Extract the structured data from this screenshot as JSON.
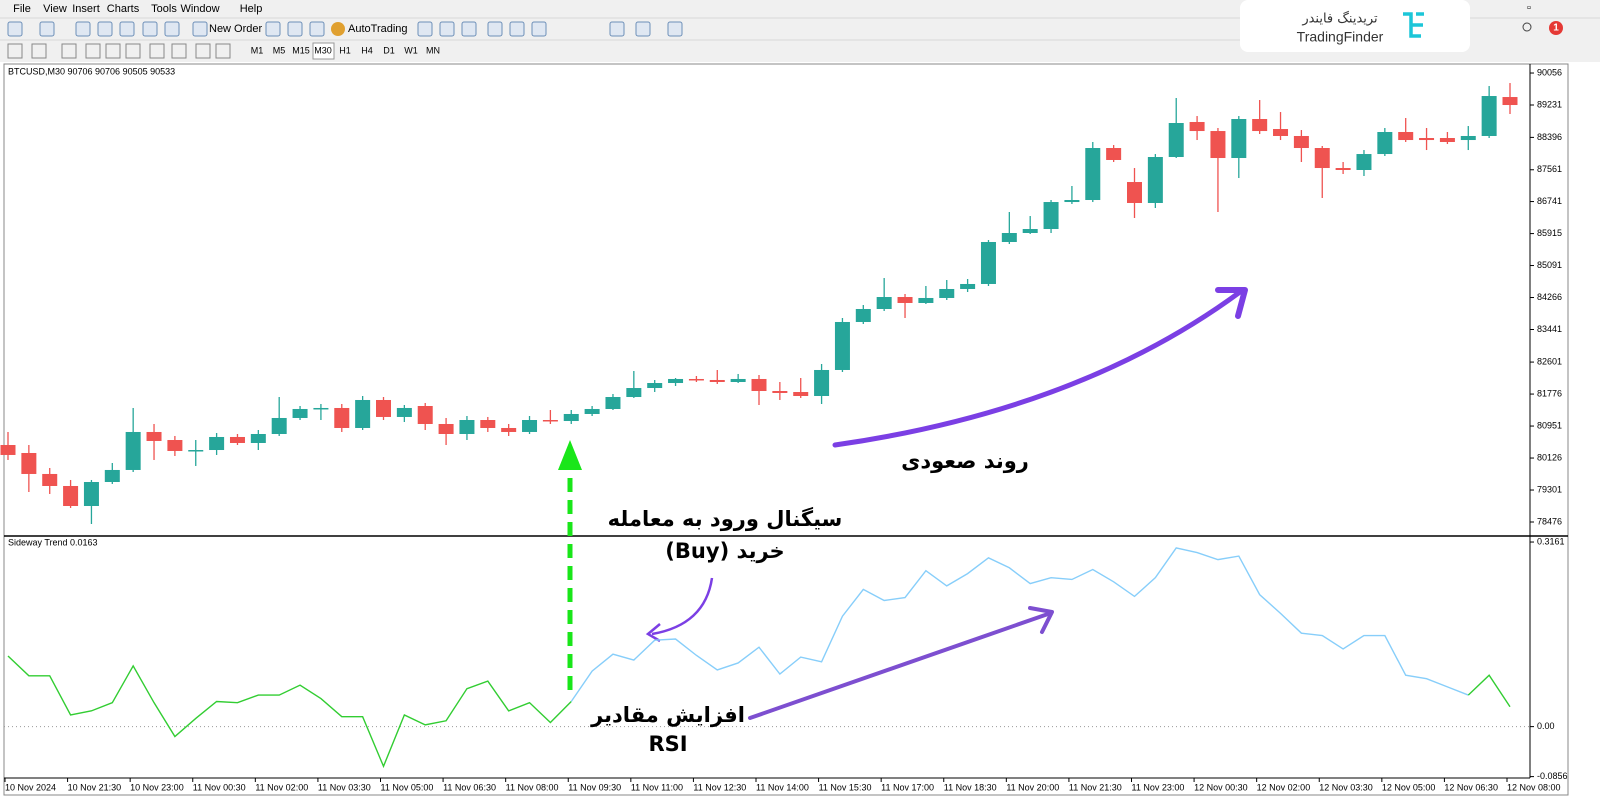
{
  "menu": [
    "File",
    "View",
    "Insert",
    "Charts",
    "Tools",
    "Window",
    "Help"
  ],
  "toolbar": {
    "new_order": "New Order",
    "auto_trading": "AutoTrading",
    "timeframes": [
      "M1",
      "M5",
      "M15",
      "M30",
      "H1",
      "H4",
      "D1",
      "W1",
      "MN"
    ]
  },
  "logo": {
    "fa": "تریدینگ فایندر",
    "en": "TradingFinder"
  },
  "notifications": "1",
  "chart_data": [
    {
      "type": "candlestick",
      "title": "BTCUSD,M30  90706 90706 90505 90533",
      "up_color": "#26a69a",
      "down_color": "#ef5350",
      "ylim": [
        78141,
        90263
      ],
      "yticks": [
        90056,
        89231,
        88396,
        87561,
        86741,
        85915,
        85091,
        84266,
        83441,
        82601,
        81776,
        80951,
        80126,
        79301,
        78476
      ],
      "open": [
        80462,
        80256,
        79715,
        79405,
        78889,
        79508,
        79818,
        80798,
        80591,
        80308,
        80333,
        80669,
        80514,
        80746,
        81159,
        81391,
        81417,
        80901,
        81623,
        81185,
        81468,
        81004,
        80746,
        81107,
        80901,
        80798,
        81107,
        81081,
        81262,
        81391,
        81700,
        81932,
        82061,
        82165,
        82139,
        82087,
        82165,
        81855,
        81829,
        81726,
        82397,
        83635,
        83970,
        84279,
        84125,
        84254,
        84486,
        84615,
        85698,
        85930,
        86033,
        86729,
        86781,
        88122,
        87245,
        86704,
        87890,
        88793,
        88560,
        87864,
        88870,
        88612,
        88432,
        88122,
        87606,
        87555,
        87967,
        88535,
        88380,
        88380,
        88328,
        88432,
        89437
      ],
      "high": [
        80798,
        80462,
        79869,
        79560,
        79560,
        79998,
        81417,
        81004,
        80695,
        80591,
        80772,
        80746,
        80849,
        81700,
        81468,
        81520,
        81520,
        81726,
        81700,
        81494,
        81546,
        81159,
        81210,
        81185,
        81004,
        81210,
        81365,
        81365,
        81468,
        81778,
        82371,
        82139,
        82190,
        82242,
        82397,
        82294,
        82268,
        82087,
        82190,
        82551,
        83738,
        84073,
        84769,
        84357,
        84563,
        84718,
        84744,
        85749,
        86472,
        86368,
        86781,
        87142,
        88277,
        88199,
        87606,
        87967,
        89412,
        88947,
        88638,
        88947,
        89360,
        89050,
        88586,
        88174,
        87761,
        88070,
        88638,
        88896,
        88638,
        88535,
        88689,
        89721,
        89798
      ],
      "low": [
        80076,
        79250,
        79199,
        78838,
        78425,
        79457,
        79766,
        80076,
        80179,
        79921,
        80205,
        80462,
        80333,
        80695,
        81107,
        81107,
        80798,
        80849,
        81107,
        81055,
        80849,
        80462,
        80591,
        80798,
        80695,
        80746,
        81004,
        81004,
        81210,
        81365,
        81675,
        81829,
        81984,
        82087,
        82036,
        82061,
        81494,
        81623,
        81675,
        81520,
        82345,
        83583,
        83918,
        83738,
        84099,
        84202,
        84408,
        84563,
        85646,
        85904,
        85930,
        86678,
        86729,
        87761,
        86317,
        86575,
        87864,
        88328,
        86472,
        87348,
        88483,
        88328,
        87761,
        86833,
        87452,
        87400,
        87916,
        88277,
        88070,
        88225,
        88070,
        88380,
        88999
      ],
      "close": [
        80205,
        79715,
        79405,
        78889,
        79508,
        79818,
        80798,
        80566,
        80308,
        80333,
        80669,
        80514,
        80746,
        81159,
        81391,
        81417,
        80901,
        81623,
        81185,
        81417,
        81004,
        80746,
        81107,
        80901,
        80798,
        81107,
        81081,
        81262,
        81391,
        81700,
        81932,
        82061,
        82165,
        82139,
        82087,
        82165,
        81855,
        81804,
        81726,
        82397,
        83635,
        83970,
        84279,
        84125,
        84254,
        84486,
        84615,
        85698,
        85930,
        86033,
        86729,
        86781,
        88122,
        87813,
        86704,
        87890,
        88767,
        88560,
        87864,
        88870,
        88560,
        88432,
        88122,
        87606,
        87555,
        87967,
        88535,
        88328,
        88328,
        88277,
        88432,
        89463,
        89231
      ],
      "annotations": [
        "روند صعودی",
        "سیگنال ورود به معامله",
        "خرید (Buy)"
      ]
    },
    {
      "type": "line",
      "title": "Sideway Trend 0.0163",
      "ylim": [
        -0.088,
        0.323
      ],
      "yticks": [
        0.3161,
        {
          "value": 0,
          "label": "0.00"
        },
        -0.0856
      ],
      "zero_line": true,
      "categories": [
        "10 Nov 2024",
        null,
        null,
        "10 Nov 21:30",
        null,
        null,
        "10 Nov 23:00",
        null,
        null,
        "11 Nov 00:30",
        null,
        null,
        "11 Nov 02:00",
        null,
        null,
        "11 Nov 03:30",
        null,
        null,
        "11 Nov 05:00",
        null,
        null,
        "11 Nov 06:30",
        null,
        null,
        "11 Nov 08:00",
        null,
        null,
        "11 Nov 09:30",
        null,
        null,
        "11 Nov 11:00",
        null,
        null,
        "11 Nov 12:30",
        null,
        null,
        "11 Nov 14:00",
        null,
        null,
        "11 Nov 15:30",
        null,
        null,
        "11 Nov 17:00",
        null,
        null,
        "11 Nov 18:30",
        null,
        null,
        "11 Nov 20:00",
        null,
        null,
        "11 Nov 21:30",
        null,
        null,
        "11 Nov 23:00",
        null,
        null,
        "12 Nov 00:30",
        null,
        null,
        "12 Nov 02:00",
        null,
        null,
        "12 Nov 03:30",
        null,
        null,
        "12 Nov 05:00",
        null,
        null,
        "12 Nov 06:30",
        null,
        null,
        "12 Nov 08:00"
      ],
      "series": [
        {
          "values": [
            0.121,
            0.087,
            0.087,
            0.02,
            0.027,
            0.041,
            0.104,
            0.041,
            -0.017,
            0.014,
            0.043,
            0.041,
            0.054,
            0.054,
            0.071,
            0.048,
            0.017,
            0.017,
            -0.068,
            0.02,
            0.003,
            0.01,
            0.065,
            0.078,
            0.027,
            0.041,
            0.007,
            0.043,
            0.095,
            0.124,
            0.114,
            0.148,
            0.15,
            0.122,
            0.097,
            0.109,
            0.136,
            0.09,
            0.119,
            0.111,
            0.189,
            0.235,
            0.216,
            0.221,
            0.267,
            0.241,
            0.262,
            0.289,
            0.272,
            0.245,
            0.255,
            0.252,
            0.269,
            0.248,
            0.223,
            0.255,
            0.306,
            0.298,
            0.286,
            0.292,
            0.226,
            0.194,
            0.16,
            0.156,
            0.133,
            0.156,
            0.156,
            0.088,
            0.082,
            0.068,
            0.054,
            0.088,
            0.034
          ],
          "colors": [
            "#32cd32",
            "#32cd32",
            "#32cd32",
            "#32cd32",
            "#32cd32",
            "#32cd32",
            "#32cd32",
            "#32cd32",
            "#32cd32",
            "#32cd32",
            "#32cd32",
            "#32cd32",
            "#32cd32",
            "#32cd32",
            "#32cd32",
            "#32cd32",
            "#32cd32",
            "#32cd32",
            "#32cd32",
            "#32cd32",
            "#32cd32",
            "#32cd32",
            "#32cd32",
            "#32cd32",
            "#32cd32",
            "#32cd32",
            "#32cd32",
            "#32cd32",
            "#87cefa",
            "#87cefa",
            "#87cefa",
            "#87cefa",
            "#87cefa",
            "#87cefa",
            "#87cefa",
            "#87cefa",
            "#87cefa",
            "#87cefa",
            "#87cefa",
            "#87cefa",
            "#87cefa",
            "#87cefa",
            "#87cefa",
            "#87cefa",
            "#87cefa",
            "#87cefa",
            "#87cefa",
            "#87cefa",
            "#87cefa",
            "#87cefa",
            "#87cefa",
            "#87cefa",
            "#87cefa",
            "#87cefa",
            "#87cefa",
            "#87cefa",
            "#87cefa",
            "#87cefa",
            "#87cefa",
            "#87cefa",
            "#87cefa",
            "#87cefa",
            "#87cefa",
            "#87cefa",
            "#87cefa",
            "#87cefa",
            "#87cefa",
            "#87cefa",
            "#87cefa",
            "#87cefa",
            "#87cefa",
            "#32cd32",
            "#32cd32"
          ]
        }
      ],
      "annotations": [
        "افزایش مقادیر",
        "RSI"
      ]
    }
  ]
}
